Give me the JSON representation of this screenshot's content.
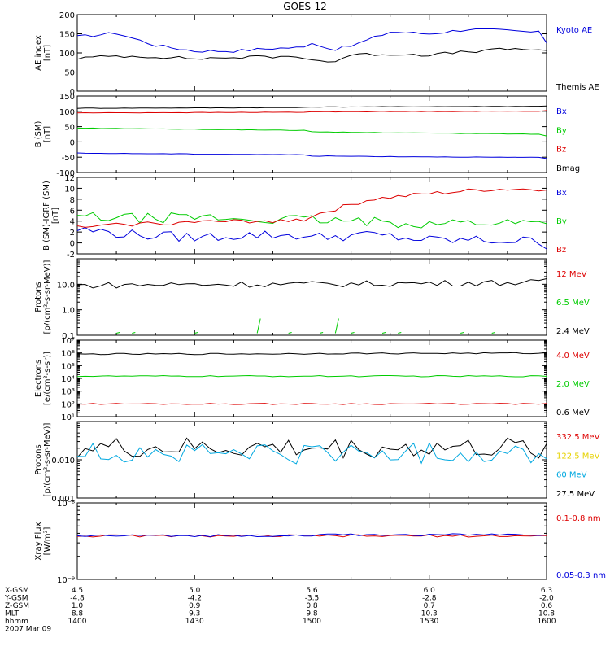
{
  "title": "GOES-12",
  "colors": {
    "black": "#000000",
    "red": "#dd0000",
    "green": "#00cc00",
    "blue": "#0000dd",
    "yellow": "#e6d200",
    "cyan": "#00a8e0"
  },
  "orbit": {
    "labels": [
      "X-GSM",
      "Y-GSM",
      "Z-GSM",
      "MLT",
      "hhmm"
    ],
    "date": "2007 Mar 09",
    "columns": [
      [
        "4.5",
        "-4.8",
        "1.0",
        "8.8",
        "1400"
      ],
      [
        "5.0",
        "-4.2",
        "0.9",
        "9.3",
        "1430"
      ],
      [
        "5.6",
        "-3.5",
        "0.8",
        "9.8",
        "1500"
      ],
      [
        "6.0",
        "-2.8",
        "0.7",
        "10.3",
        "1530"
      ],
      [
        "6.3",
        "-2.0",
        "0.6",
        "10.8",
        "1600"
      ]
    ]
  },
  "chart_data": [
    {
      "type": "line",
      "ylabel": [
        "AE index",
        "[nT]"
      ],
      "ylim": [
        0,
        200
      ],
      "ticks": [
        "0",
        "50",
        "100",
        "150",
        "200"
      ],
      "time_range": [
        "1400",
        "1600"
      ],
      "legend": [
        {
          "name": "Kyoto AE",
          "color": "blue"
        },
        {
          "name": "Themis AE",
          "color": "black"
        }
      ],
      "series": [
        {
          "name": "Kyoto AE",
          "color": "blue",
          "x": [
            1400,
            1410,
            1420,
            1430,
            1440,
            1450,
            1500,
            1505,
            1510,
            1520,
            1530,
            1540,
            1550,
            1600
          ],
          "values": [
            142,
            152,
            120,
            105,
            105,
            112,
            128,
            108,
            118,
            155,
            150,
            162,
            158,
            128
          ]
        },
        {
          "name": "Themis AE",
          "color": "black",
          "x": [
            1400,
            1410,
            1420,
            1430,
            1440,
            1450,
            1500,
            1505,
            1510,
            1520,
            1530,
            1540,
            1550,
            1600
          ],
          "values": [
            86,
            92,
            90,
            85,
            88,
            90,
            83,
            75,
            95,
            97,
            95,
            103,
            110,
            104
          ]
        }
      ]
    },
    {
      "type": "line",
      "ylabel": [
        "B (SM)",
        "[nT]"
      ],
      "ylim": [
        -100,
        150
      ],
      "ticks": [
        "-100",
        "-50",
        "0",
        "50",
        "100",
        "150"
      ],
      "legend": [
        {
          "name": "Bx",
          "color": "blue"
        },
        {
          "name": "By",
          "color": "green"
        },
        {
          "name": "Bz",
          "color": "red"
        },
        {
          "name": "Bmag",
          "color": "black"
        }
      ],
      "series": [
        {
          "name": "Bmag",
          "color": "black",
          "x": [
            1400,
            1600
          ],
          "values": [
            110,
            118
          ]
        },
        {
          "name": "Bz",
          "color": "red",
          "x": [
            1400,
            1600
          ],
          "values": [
            95,
            102
          ]
        },
        {
          "name": "By",
          "color": "green",
          "x": [
            1400,
            1600
          ],
          "values": [
            45,
            20
          ]
        },
        {
          "name": "Bx",
          "color": "blue",
          "x": [
            1400,
            1600
          ],
          "values": [
            -37,
            -55
          ]
        }
      ]
    },
    {
      "type": "line",
      "ylabel": [
        "B (SM)-IGRF (SM)",
        "[nT]"
      ],
      "ylim": [
        -2,
        12
      ],
      "ticks": [
        "-2",
        "0",
        "2",
        "4",
        "6",
        "8",
        "10",
        "12"
      ],
      "legend": [
        {
          "name": "Bx",
          "color": "blue"
        },
        {
          "name": "By",
          "color": "green"
        },
        {
          "name": "Bz",
          "color": "red"
        }
      ],
      "series": [
        {
          "name": "Bx",
          "color": "blue",
          "x": [
            1400,
            1415,
            1430,
            1445,
            1500,
            1515,
            1530,
            1545,
            1600
          ],
          "values": [
            2.5,
            1.5,
            1.0,
            1.5,
            1.0,
            1.5,
            0.5,
            0.5,
            -0.3
          ]
        },
        {
          "name": "By",
          "color": "green",
          "x": [
            1400,
            1415,
            1430,
            1445,
            1500,
            1515,
            1530,
            1545,
            1600
          ],
          "values": [
            4.8,
            4.5,
            4.7,
            4.3,
            4.2,
            3.8,
            3.6,
            3.8,
            3.4
          ]
        },
        {
          "name": "Bz",
          "color": "red",
          "x": [
            1400,
            1415,
            1430,
            1445,
            1500,
            1505,
            1515,
            1530,
            1545,
            1600
          ],
          "values": [
            2.8,
            3.5,
            3.8,
            4.0,
            5.0,
            6.0,
            8.0,
            9.0,
            9.8,
            10.0
          ]
        }
      ]
    },
    {
      "type": "line",
      "scale": "log",
      "ylabel": [
        "Protons",
        "[p/(cm²-s-sr-MeV)]"
      ],
      "ylim": [
        0.1,
        100
      ],
      "ticks": [
        "0.1",
        "1.0",
        "10.0"
      ],
      "legend": [
        {
          "name": "12 MeV",
          "color": "red"
        },
        {
          "name": "6.5 MeV",
          "color": "green"
        },
        {
          "name": "2.4 MeV",
          "color": "black"
        }
      ],
      "series": [
        {
          "name": "2.4 MeV",
          "color": "black",
          "x": [
            1400,
            1430,
            1500,
            1530,
            1600
          ],
          "values": [
            9,
            10,
            10,
            11,
            13
          ]
        },
        {
          "name": "6.5 MeV",
          "color": "green",
          "x": [
            1400,
            1600
          ],
          "values": [
            0.13,
            0.13
          ],
          "note": "sporadic"
        }
      ]
    },
    {
      "type": "line",
      "scale": "log",
      "ylabel": [
        "Electrons",
        "[e/(cm²-s-sr)]"
      ],
      "ylim": [
        10,
        10000000
      ],
      "ticks": [
        "10¹",
        "10²",
        "10³",
        "10⁴",
        "10⁵",
        "10⁶",
        "10⁷"
      ],
      "legend": [
        {
          "name": "4.0 MeV",
          "color": "red"
        },
        {
          "name": "2.0 MeV",
          "color": "green"
        },
        {
          "name": "0.6 MeV",
          "color": "black"
        }
      ],
      "series": [
        {
          "name": "0.6 MeV",
          "color": "black",
          "x": [
            1400,
            1600
          ],
          "values": [
            800000,
            1000000
          ]
        },
        {
          "name": "2.0 MeV",
          "color": "green",
          "x": [
            1400,
            1600
          ],
          "values": [
            15000,
            15000
          ]
        },
        {
          "name": "4.0 MeV",
          "color": "red",
          "x": [
            1400,
            1600
          ],
          "values": [
            100,
            100
          ]
        }
      ]
    },
    {
      "type": "line",
      "scale": "log",
      "ylabel": [
        "Protons",
        "[p/(cm²-s-sr-MeV)]"
      ],
      "ylim": [
        0.001,
        0.1
      ],
      "ticks": [
        "0.001",
        "0.010"
      ],
      "legend": [
        {
          "name": "332.5 MeV",
          "color": "red"
        },
        {
          "name": "122.5 MeV",
          "color": "yellow"
        },
        {
          "name": "60 MeV",
          "color": "cyan"
        },
        {
          "name": "27.5 MeV",
          "color": "black"
        }
      ],
      "series": [
        {
          "name": "27.5 MeV",
          "color": "black",
          "x": [
            1400,
            1600
          ],
          "values": [
            0.02,
            0.02
          ]
        },
        {
          "name": "60 MeV",
          "color": "cyan",
          "x": [
            1400,
            1600
          ],
          "values": [
            0.015,
            0.015
          ]
        }
      ]
    },
    {
      "type": "line",
      "scale": "log",
      "ylabel": [
        "Xray Flux",
        "[W/m²]"
      ],
      "ylim": [
        1e-09,
        1e-08
      ],
      "ticks": [
        "10⁻⁹",
        "10⁻⁸"
      ],
      "legend": [
        {
          "name": "0.1-0.8 nm",
          "color": "red"
        },
        {
          "name": "0.05-0.3 nm",
          "color": "blue"
        }
      ],
      "series": [
        {
          "name": "0.1-0.8 nm",
          "color": "red",
          "x": [
            1400,
            1600
          ],
          "values": [
            3.7e-09,
            3.7e-09
          ]
        },
        {
          "name": "0.05-0.3 nm",
          "color": "blue",
          "x": [
            1400,
            1600
          ],
          "values": [
            3.7e-09,
            3.9e-09
          ]
        }
      ]
    }
  ]
}
